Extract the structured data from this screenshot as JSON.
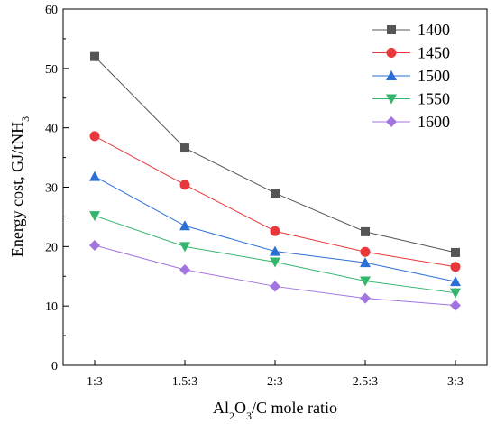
{
  "chart_data": {
    "type": "line",
    "xlabel": {
      "base": "Al",
      "sub1": "2",
      "mid": "O",
      "sub2": "3",
      "tail": "/C mole ratio"
    },
    "ylabel": {
      "base": "Energy cost, GJ/tNH",
      "sub": "3"
    },
    "categories": [
      "1:3",
      "1.5:3",
      "2:3",
      "2.5:3",
      "3:3"
    ],
    "ylim": [
      0,
      60
    ],
    "yticks": [
      0,
      10,
      20,
      30,
      40,
      50,
      60
    ],
    "grid": false,
    "legend_position": "top-right",
    "series": [
      {
        "name": "1400",
        "values": [
          52.0,
          36.6,
          29.0,
          22.5,
          19.0
        ],
        "color": "#555555",
        "marker": "square"
      },
      {
        "name": "1450",
        "values": [
          38.6,
          30.4,
          22.6,
          19.1,
          16.6
        ],
        "color": "#e8383b",
        "marker": "circle"
      },
      {
        "name": "1500",
        "values": [
          31.8,
          23.5,
          19.2,
          17.3,
          14.1
        ],
        "color": "#2a6fd6",
        "marker": "triangle-up"
      },
      {
        "name": "1550",
        "values": [
          25.2,
          20.0,
          17.4,
          14.2,
          12.2
        ],
        "color": "#33b56b",
        "marker": "triangle-down"
      },
      {
        "name": "1600",
        "values": [
          20.2,
          16.1,
          13.3,
          11.3,
          10.1
        ],
        "color": "#a274e0",
        "marker": "diamond"
      }
    ]
  }
}
